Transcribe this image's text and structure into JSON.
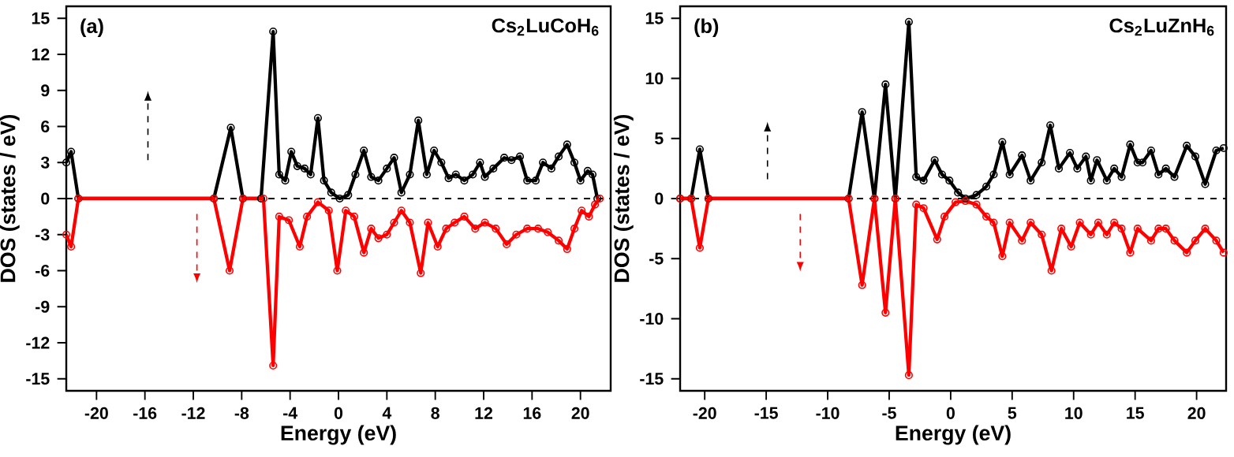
{
  "chart_data": [
    {
      "type": "line",
      "xlabel": "Energy (eV)",
      "ylabel": "DOS (states / eV)",
      "annotations": [
        "(a)",
        "Cs$_{2}$LuCoH$_{6}$"
      ],
      "xlim": [
        -22.5,
        22.5
      ],
      "ylim": [
        -16,
        16
      ],
      "xticks": [
        -20,
        -16,
        -12,
        -8,
        -4,
        0,
        4,
        8,
        12,
        16,
        20
      ],
      "yticks": [
        -15,
        -12,
        -9,
        -6,
        -3,
        0,
        3,
        6,
        9,
        12,
        15
      ],
      "marker": "circle",
      "ref_lines": [
        {
          "axis": "y",
          "value": 0,
          "color": "#000000",
          "line_style": "dashed"
        }
      ],
      "series": [
        {
          "color": "#000000",
          "x": [
            -22.5,
            -22.1,
            -21.5,
            -10.3,
            -8.9,
            -7.9,
            -6.4,
            -5.4,
            -4.9,
            -4.4,
            -3.9,
            -3.4,
            -2.8,
            -2.3,
            -1.7,
            -1.2,
            -0.6,
            0.1,
            0.8,
            1.4,
            2.1,
            2.7,
            3.3,
            4.0,
            4.6,
            5.2,
            5.9,
            6.6,
            7.3,
            7.9,
            8.5,
            9.1,
            9.7,
            10.4,
            11.1,
            11.7,
            12.1,
            12.8,
            13.7,
            14.3,
            15.0,
            15.6,
            16.3,
            16.9,
            17.6,
            18.2,
            18.9,
            19.5,
            20.0,
            20.6,
            21.0,
            21.4
          ],
          "values": [
            3.0,
            3.9,
            0,
            0,
            5.9,
            0,
            0,
            13.9,
            2.0,
            1.5,
            3.9,
            2.7,
            2.5,
            2.0,
            6.7,
            1.5,
            0.5,
            0,
            0.3,
            2.0,
            4.0,
            1.8,
            1.5,
            2.5,
            3.4,
            0.5,
            2.0,
            6.5,
            2.0,
            4.0,
            3.0,
            1.7,
            2.0,
            1.5,
            2.0,
            3.0,
            1.8,
            2.5,
            3.4,
            3.2,
            3.5,
            1.5,
            1.5,
            3.0,
            2.5,
            3.5,
            4.5,
            3.0,
            1.5,
            2.3,
            2.0,
            0
          ]
        },
        {
          "color": "#ff0000",
          "x": [
            -22.5,
            -22.1,
            -21.5,
            -10.3,
            -9.0,
            -7.9,
            -6.2,
            -5.4,
            -4.9,
            -4.1,
            -3.2,
            -2.6,
            -1.7,
            -0.8,
            -0.1,
            0.6,
            1.3,
            2.1,
            2.7,
            3.3,
            4.0,
            4.6,
            5.2,
            5.9,
            6.8,
            7.4,
            8.2,
            8.9,
            9.6,
            10.4,
            11.3,
            12.1,
            13.0,
            13.9,
            14.7,
            15.6,
            16.5,
            17.3,
            18.2,
            18.9,
            19.5,
            20.1,
            20.7,
            21.2,
            21.6
          ],
          "values": [
            -3.0,
            -4.0,
            0,
            0,
            -6.0,
            0,
            0,
            -13.9,
            -1.5,
            -1.8,
            -4.0,
            -1.5,
            -0.3,
            -1.0,
            -6.0,
            -1.0,
            -1.5,
            -4.5,
            -2.5,
            -3.3,
            -3.0,
            -2.0,
            -1.0,
            -2.0,
            -6.2,
            -2.0,
            -4.0,
            -2.5,
            -2.0,
            -1.5,
            -2.5,
            -2.0,
            -2.5,
            -3.8,
            -3.0,
            -2.5,
            -2.5,
            -2.8,
            -3.5,
            -4.2,
            -2.5,
            -1.0,
            -1.5,
            -0.5,
            0
          ]
        }
      ]
    },
    {
      "type": "line",
      "xlabel": "Energy (eV)",
      "ylabel": "DOS (states / eV)",
      "annotations": [
        "(b)",
        "Cs$_{2}$LuZnH$_{6}$"
      ],
      "xlim": [
        -22,
        22.4
      ],
      "ylim": [
        -16,
        16
      ],
      "xticks": [
        -20,
        -15,
        -10,
        -5,
        0,
        5,
        10,
        15,
        20
      ],
      "yticks": [
        -15,
        -10,
        -5,
        0,
        5,
        10,
        15
      ],
      "marker": "circle",
      "ref_lines": [
        {
          "axis": "y",
          "value": 0,
          "color": "#000000",
          "line_style": "dashed"
        }
      ],
      "series": [
        {
          "color": "#000000",
          "x": [
            -22,
            -21.1,
            -20.4,
            -19.7,
            -8.3,
            -7.2,
            -6.2,
            -5.3,
            -4.5,
            -3.4,
            -2.8,
            -2.2,
            -1.3,
            -0.7,
            -0.1,
            0.6,
            1.2,
            2.1,
            2.9,
            3.5,
            4.2,
            4.8,
            5.8,
            6.5,
            7.4,
            8.1,
            8.8,
            9.7,
            10.3,
            11.0,
            11.4,
            11.9,
            12.7,
            13.3,
            13.9,
            14.6,
            15.2,
            15.6,
            16.3,
            16.9,
            17.5,
            18.2,
            19.2,
            19.9,
            20.7,
            21.6,
            22.2
          ],
          "values": [
            0,
            0,
            4.1,
            0,
            0,
            7.2,
            0,
            9.5,
            0,
            14.7,
            1.8,
            1.5,
            3.2,
            2.0,
            1.5,
            0.5,
            0,
            0.3,
            1.0,
            2.0,
            4.7,
            2.0,
            3.6,
            1.5,
            3.0,
            6.1,
            2.5,
            3.8,
            2.5,
            3.5,
            1.5,
            3.2,
            1.5,
            2.5,
            1.8,
            4.5,
            3.0,
            3.0,
            4.0,
            2.0,
            2.5,
            1.8,
            4.4,
            3.5,
            1.2,
            4.0,
            4.2
          ]
        },
        {
          "color": "#ff0000",
          "x": [
            -22,
            -21.1,
            -20.4,
            -19.7,
            -8.3,
            -7.2,
            -6.2,
            -5.3,
            -4.5,
            -3.4,
            -2.8,
            -2.2,
            -1.1,
            -0.5,
            0.4,
            1.2,
            2.1,
            2.9,
            3.5,
            4.2,
            4.8,
            5.8,
            6.5,
            7.4,
            8.2,
            9.0,
            9.8,
            10.5,
            11.4,
            12.0,
            12.7,
            13.3,
            13.9,
            14.6,
            15.2,
            16.3,
            16.9,
            17.5,
            18.2,
            19.2,
            19.9,
            20.7,
            21.6,
            22.2
          ],
          "values": [
            0,
            0,
            -4.1,
            0,
            0,
            -7.2,
            0,
            -9.5,
            0,
            -14.7,
            -0.5,
            -0.8,
            -3.4,
            -1.5,
            -0.3,
            -0.2,
            -0.5,
            -1.5,
            -2.0,
            -4.8,
            -2.0,
            -3.5,
            -2.0,
            -3.0,
            -6.0,
            -2.5,
            -4.0,
            -2.0,
            -3.0,
            -2.0,
            -3.0,
            -2.0,
            -2.5,
            -4.5,
            -2.5,
            -3.5,
            -2.5,
            -2.5,
            -3.5,
            -4.5,
            -3.5,
            -2.5,
            -3.5,
            -4.5
          ]
        }
      ]
    }
  ]
}
